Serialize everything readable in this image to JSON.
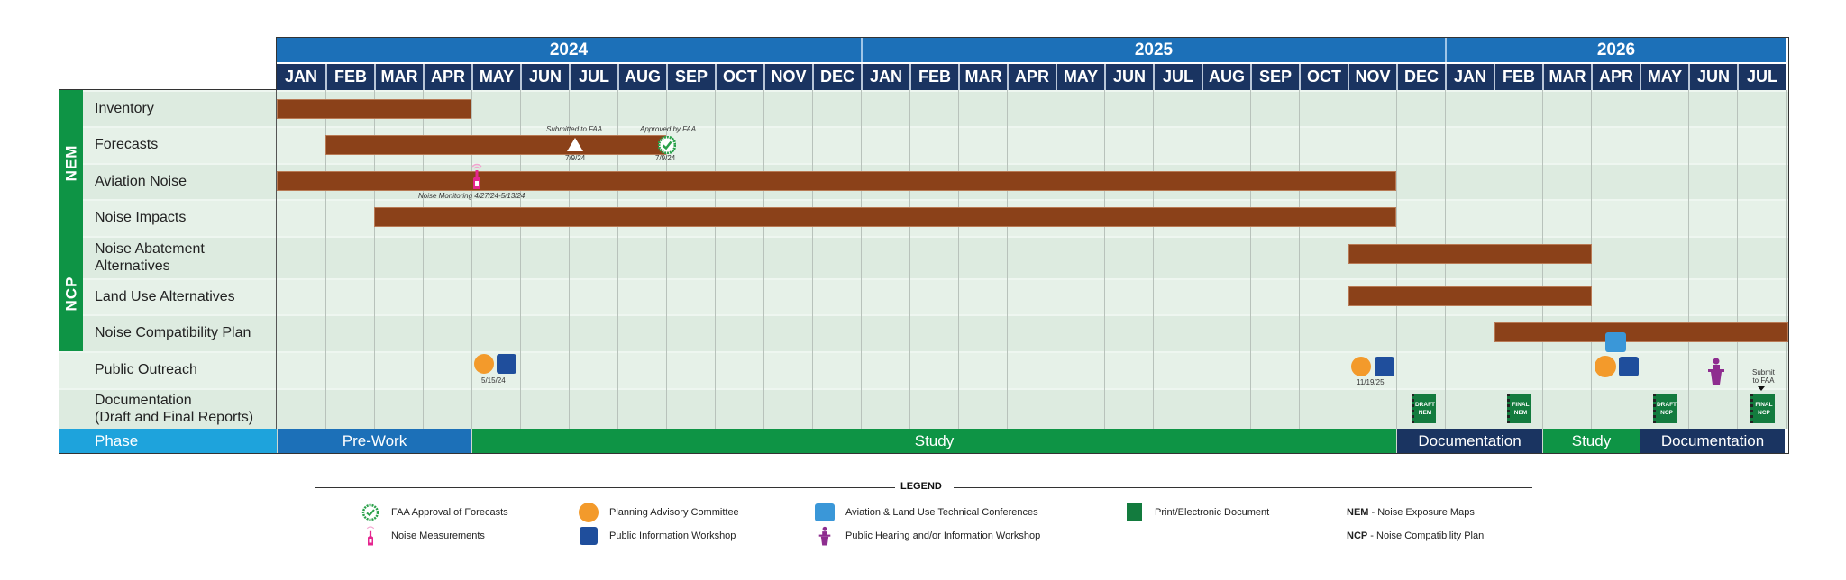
{
  "colors": {
    "year_header": "#1c70b8",
    "month_header": "#1a3461",
    "bar": "#8b4119",
    "group_stripe": "#0e9445",
    "phase_label": "#1ea3dc",
    "phase_prework": "#1c70b8",
    "phase_study": "#0e9445",
    "phase_documentation": "#1a3461"
  },
  "header": {
    "years": [
      {
        "label": "2024",
        "start": 0,
        "months": 12
      },
      {
        "label": "2025",
        "start": 12,
        "months": 12
      },
      {
        "label": "2026",
        "start": 24,
        "months": 7
      }
    ],
    "months": [
      "JAN",
      "FEB",
      "MAR",
      "APR",
      "MAY",
      "JUN",
      "JUL",
      "AUG",
      "SEP",
      "OCT",
      "NOV",
      "DEC",
      "JAN",
      "FEB",
      "MAR",
      "APR",
      "MAY",
      "JUN",
      "JUL",
      "AUG",
      "SEP",
      "OCT",
      "NOV",
      "DEC",
      "JAN",
      "FEB",
      "MAR",
      "APR",
      "MAY",
      "JUN",
      "JUL"
    ]
  },
  "groups": [
    {
      "label": "NEM",
      "rows": [
        0,
        1,
        2,
        3
      ]
    },
    {
      "label": "NCP",
      "rows": [
        4,
        5,
        6
      ]
    }
  ],
  "rows": [
    {
      "label": "Inventory"
    },
    {
      "label": "Forecasts"
    },
    {
      "label": "Aviation Noise"
    },
    {
      "label": "Noise Impacts"
    },
    {
      "label": "Noise Abatement\nAlternatives"
    },
    {
      "label": "Land Use Alternatives"
    },
    {
      "label": "Noise Compatibility Plan"
    },
    {
      "label": "Public Outreach"
    },
    {
      "label": "Documentation\n(Draft and Final Reports)"
    }
  ],
  "annotations": {
    "submitted_label": "Submitted to FAA",
    "submitted_date": "7/9/24",
    "approved_label": "Approved by FAA",
    "approved_date": "7/9/24",
    "noise_monitoring": "Noise Monitoring 4/27/24-5/13/24",
    "outreach_date_1": "5/15/24",
    "outreach_date_2": "11/19/25",
    "submit_final": "Submit\nto FAA"
  },
  "documents": [
    {
      "line1": "DRAFT",
      "line2": "NEM"
    },
    {
      "line1": "FINAL",
      "line2": "NEM"
    },
    {
      "line1": "DRAFT",
      "line2": "NCP"
    },
    {
      "line1": "FINAL",
      "line2": "NCP"
    }
  ],
  "phases": {
    "label": "Phase",
    "segments": [
      {
        "label": "Pre-Work",
        "start": 0,
        "end": 4
      },
      {
        "label": "Study",
        "start": 4,
        "end": 23
      },
      {
        "label": "Documentation",
        "start": 23,
        "end": 26
      },
      {
        "label": "Study",
        "start": 26,
        "end": 28
      },
      {
        "label": "Documentation",
        "start": 28,
        "end": 31
      }
    ]
  },
  "legend": {
    "title": "LEGEND",
    "items": [
      {
        "icon": "faa-approval-icon",
        "label": "FAA Approval of Forecasts"
      },
      {
        "icon": "noise-meter-icon",
        "label": "Noise Measurements"
      },
      {
        "icon": "planning-committee-icon",
        "label": "Planning Advisory Committee"
      },
      {
        "icon": "public-workshop-icon",
        "label": "Public Information Workshop"
      },
      {
        "icon": "technical-conference-icon",
        "label": "Aviation & Land Use Technical Conferences"
      },
      {
        "icon": "public-hearing-icon",
        "label": "Public Hearing and/or Information Workshop"
      },
      {
        "icon": "document-icon",
        "label": "Print/Electronic Document"
      }
    ],
    "abbreviations": [
      {
        "abbr": "NEM",
        "text": " - Noise Exposure Maps"
      },
      {
        "abbr": "NCP",
        "text": " - Noise Compatibility Plan"
      }
    ]
  },
  "chart_data": {
    "type": "gantt",
    "title": "",
    "x_axis": "Months JAN 2024 – JUL 2026",
    "categories": [
      "Inventory",
      "Forecasts",
      "Aviation Noise",
      "Noise Impacts",
      "Noise Abatement Alternatives",
      "Land Use Alternatives",
      "Noise Compatibility Plan",
      "Public Outreach",
      "Documentation (Draft and Final Reports)"
    ],
    "tasks": [
      {
        "task": "Inventory",
        "group": "NEM",
        "start": "2024-01",
        "end": "2024-04"
      },
      {
        "task": "Forecasts",
        "group": "NEM",
        "start": "2024-02",
        "end": "2024-08"
      },
      {
        "task": "Aviation Noise",
        "group": "NEM",
        "start": "2024-01",
        "end": "2025-11"
      },
      {
        "task": "Noise Impacts",
        "group": "NEM",
        "start": "2024-03",
        "end": "2025-11"
      },
      {
        "task": "Noise Abatement Alternatives",
        "group": "NCP",
        "start": "2025-11",
        "end": "2026-03"
      },
      {
        "task": "Land Use Alternatives",
        "group": "NCP",
        "start": "2025-11",
        "end": "2026-03"
      },
      {
        "task": "Noise Compatibility Plan",
        "group": "NCP",
        "start": "2026-02",
        "end": "2026-07"
      }
    ],
    "milestones": [
      {
        "task": "Forecasts",
        "label": "Submitted to FAA",
        "date": "7/9/24"
      },
      {
        "task": "Forecasts",
        "label": "Approved by FAA",
        "date": "7/9/24"
      },
      {
        "task": "Aviation Noise",
        "label": "Noise Monitoring 4/27/24-5/13/24",
        "date": "2024-05"
      },
      {
        "task": "Public Outreach",
        "label": "Planning Advisory Committee + Public Information Workshop",
        "date": "5/15/24"
      },
      {
        "task": "Public Outreach",
        "label": "Planning Advisory Committee + Public Information Workshop",
        "date": "11/19/25"
      },
      {
        "task": "Public Outreach",
        "label": "Technical Conference + PAC + Workshop",
        "date": "2026-04"
      },
      {
        "task": "Public Outreach",
        "label": "Public Hearing",
        "date": "2026-06"
      },
      {
        "task": "Documentation",
        "label": "DRAFT NEM",
        "date": "2025-12"
      },
      {
        "task": "Documentation",
        "label": "FINAL NEM",
        "date": "2026-02"
      },
      {
        "task": "Documentation",
        "label": "DRAFT NCP",
        "date": "2026-05"
      },
      {
        "task": "Documentation",
        "label": "FINAL NCP (Submit to FAA)",
        "date": "2026-07"
      }
    ],
    "phases": [
      {
        "label": "Pre-Work",
        "start": "2024-01",
        "end": "2024-04"
      },
      {
        "label": "Study",
        "start": "2024-05",
        "end": "2025-11"
      },
      {
        "label": "Documentation",
        "start": "2025-12",
        "end": "2026-02"
      },
      {
        "label": "Study",
        "start": "2026-03",
        "end": "2026-04"
      },
      {
        "label": "Documentation",
        "start": "2026-05",
        "end": "2026-07"
      }
    ]
  }
}
